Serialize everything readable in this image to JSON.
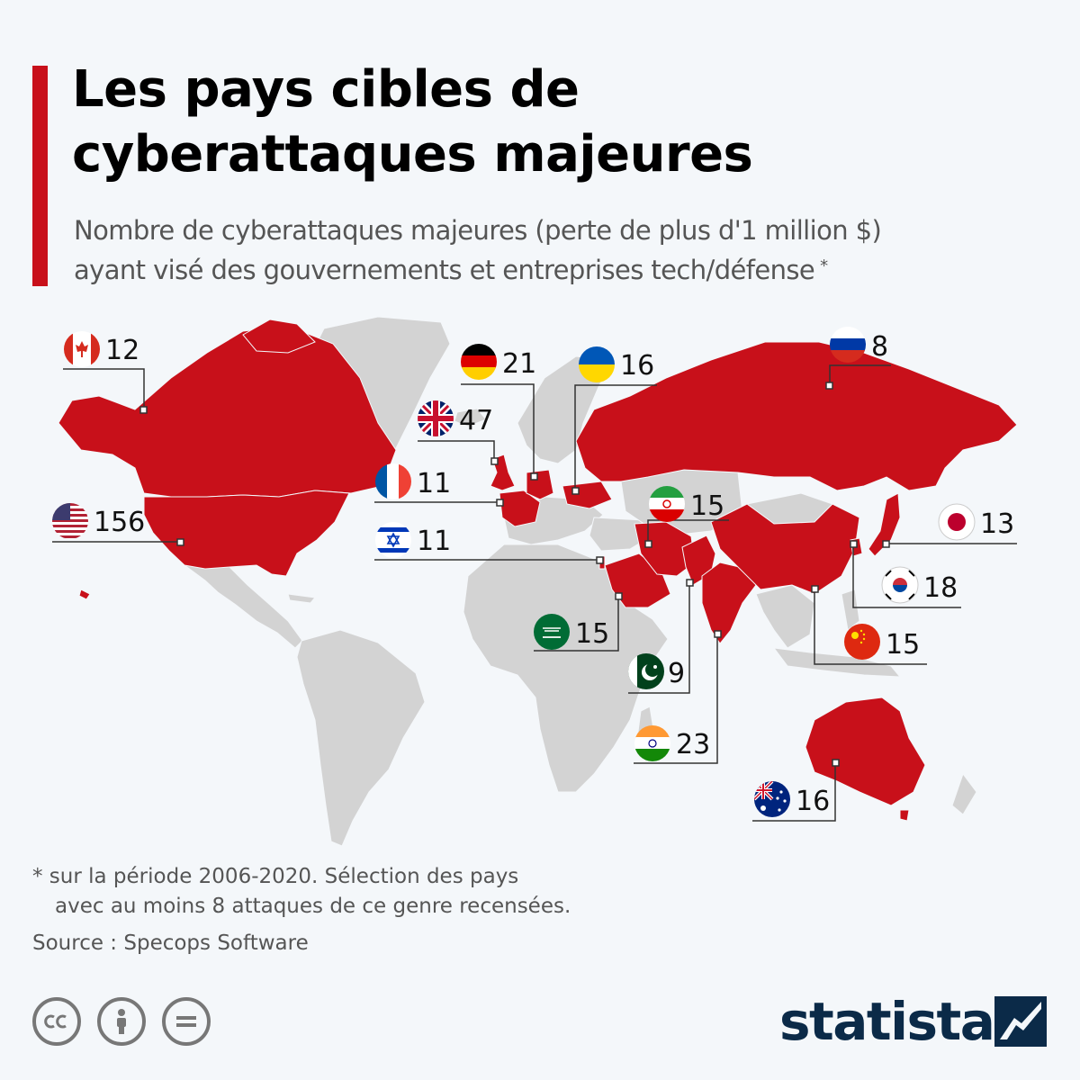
{
  "header": {
    "title_line1": "Les pays cibles de",
    "title_line2": "cyberattaques majeures",
    "subtitle_line1": "Nombre de cyberattaques majeures (perte de plus d'1 million $)",
    "subtitle_line2": "ayant visé des gouvernements et entreprises tech/défense",
    "subtitle_mark": "*"
  },
  "colors": {
    "accent": "#c8101a",
    "highlight_country": "#c8101a",
    "other_land": "#d3d3d3",
    "background": "#f4f7fa",
    "brand": "#0b2a48"
  },
  "map_data": [
    {
      "country": "Canada",
      "value": 12,
      "label": "12",
      "flag": "canada-flag-icon"
    },
    {
      "country": "United States",
      "value": 156,
      "label": "156",
      "flag": "usa-flag-icon"
    },
    {
      "country": "Germany",
      "value": 21,
      "label": "21",
      "flag": "germany-flag-icon"
    },
    {
      "country": "United Kingdom",
      "value": 47,
      "label": "47",
      "flag": "uk-flag-icon"
    },
    {
      "country": "France",
      "value": 11,
      "label": "11",
      "flag": "france-flag-icon"
    },
    {
      "country": "Israel",
      "value": 11,
      "label": "11",
      "flag": "israel-flag-icon"
    },
    {
      "country": "Ukraine",
      "value": 16,
      "label": "16",
      "flag": "ukraine-flag-icon"
    },
    {
      "country": "Russia",
      "value": 8,
      "label": "8",
      "flag": "russia-flag-icon"
    },
    {
      "country": "Iran",
      "value": 15,
      "label": "15",
      "flag": "iran-flag-icon"
    },
    {
      "country": "Japan",
      "value": 13,
      "label": "13",
      "flag": "japan-flag-icon"
    },
    {
      "country": "South Korea",
      "value": 18,
      "label": "18",
      "flag": "south-korea-flag-icon"
    },
    {
      "country": "Saudi Arabia",
      "value": 15,
      "label": "15",
      "flag": "saudi-arabia-flag-icon"
    },
    {
      "country": "Pakistan",
      "value": 9,
      "label": "9",
      "flag": "pakistan-flag-icon"
    },
    {
      "country": "China",
      "value": 15,
      "label": "15",
      "flag": "china-flag-icon"
    },
    {
      "country": "India",
      "value": 23,
      "label": "23",
      "flag": "india-flag-icon"
    },
    {
      "country": "Australia",
      "value": 16,
      "label": "16",
      "flag": "australia-flag-icon"
    }
  ],
  "footer": {
    "footnote_line1": "* sur la période 2006-2020. Sélection des pays",
    "footnote_line2": "avec au moins 8 attaques de ce genre recensées.",
    "source": "Source : Specops Software",
    "license_icons": [
      "cc-icon",
      "by-attribution-icon",
      "nd-noderivs-icon"
    ],
    "brand": "statista"
  }
}
